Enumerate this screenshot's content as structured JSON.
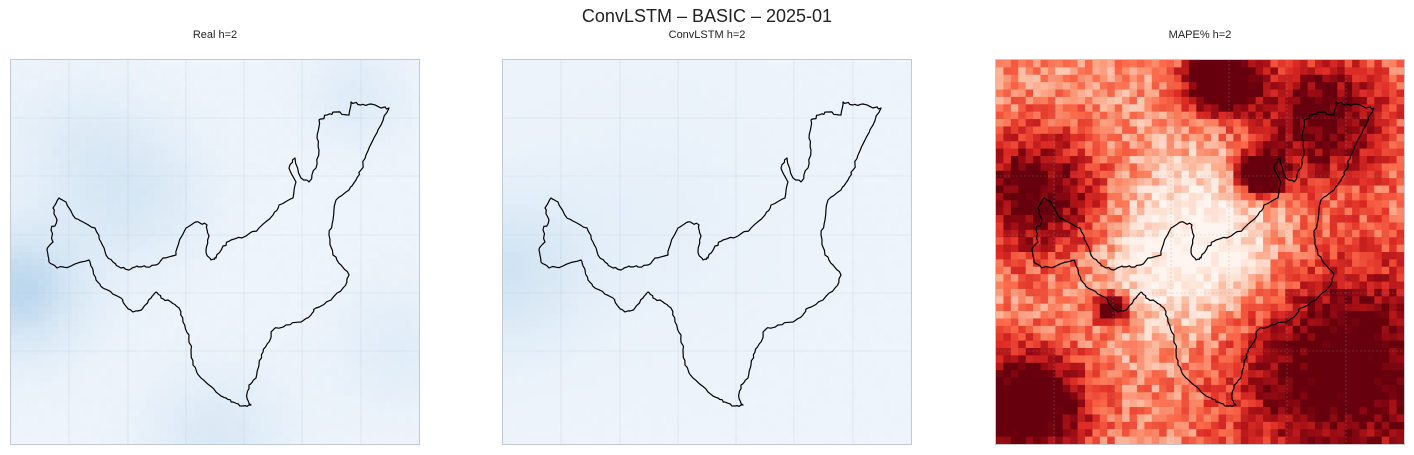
{
  "figure": {
    "suptitle": "ConvLSTM – BASIC – 2025-01"
  },
  "chart_data": [
    {
      "type": "heatmap",
      "title": "Real h=2",
      "colormap": "Blues",
      "xlabel": "",
      "ylabel": "",
      "grid": true,
      "region_outline": true
    },
    {
      "type": "heatmap",
      "title": "ConvLSTM h=2",
      "colormap": "Blues",
      "xlabel": "",
      "ylabel": "",
      "grid": true,
      "region_outline": true
    },
    {
      "type": "heatmap",
      "title": "MAPE% h=2",
      "colormap": "Reds",
      "xlabel": "",
      "ylabel": "",
      "grid": true,
      "region_outline": true
    }
  ],
  "colors": {
    "outline": "#000000",
    "frame": "#c4c8d0",
    "blues_low": "#f1f6fc",
    "blues_high": "#bcd7ee",
    "reds_low": "#fff5f0",
    "reds_high": "#67000d"
  }
}
